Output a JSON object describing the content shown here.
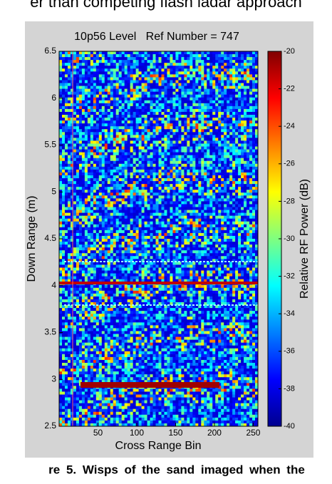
{
  "header": {
    "text": "er than competing flash ladar approach"
  },
  "chart_data": {
    "type": "heatmap",
    "title": "10p56 Level   Ref Number = 747",
    "x_label": "Cross Range Bin",
    "y_label": "Down Range (m)",
    "xlim": [
      0,
      256
    ],
    "xticks": [
      50,
      100,
      150,
      200,
      250
    ],
    "ylim": [
      2.5,
      6.5
    ],
    "yticks": [
      2.5,
      3,
      3.5,
      4,
      4.5,
      5,
      5.5,
      6,
      6.5
    ],
    "colorbar": {
      "label": "Relative RF Power (dB)",
      "colormap": "jet",
      "lim": [
        -40,
        -20
      ],
      "ticks": [
        -40,
        -38,
        -36,
        -34,
        -32,
        -30,
        -28,
        -26,
        -24,
        -22,
        -20
      ]
    }
  },
  "caption": {
    "text": "re 5. Wisps of the sand imaged when the"
  }
}
